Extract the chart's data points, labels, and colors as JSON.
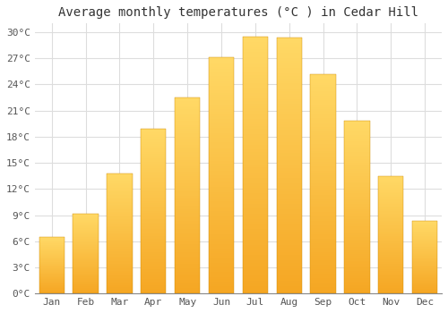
{
  "title": "Average monthly temperatures (°C ) in Cedar Hill",
  "months": [
    "Jan",
    "Feb",
    "Mar",
    "Apr",
    "May",
    "Jun",
    "Jul",
    "Aug",
    "Sep",
    "Oct",
    "Nov",
    "Dec"
  ],
  "values": [
    6.5,
    9.2,
    13.8,
    18.9,
    22.5,
    27.1,
    29.5,
    29.4,
    25.2,
    19.8,
    13.5,
    8.3
  ],
  "bar_color_bottom": "#F5A623",
  "bar_color_top": "#FFD966",
  "ylim": [
    0,
    31
  ],
  "yticks": [
    0,
    3,
    6,
    9,
    12,
    15,
    18,
    21,
    24,
    27,
    30
  ],
  "ytick_labels": [
    "0°C",
    "3°C",
    "6°C",
    "9°C",
    "12°C",
    "15°C",
    "18°C",
    "21°C",
    "24°C",
    "27°C",
    "30°C"
  ],
  "background_color": "#FFFFFF",
  "grid_color": "#DDDDDD",
  "title_fontsize": 10,
  "tick_fontsize": 8,
  "bar_width": 0.75
}
